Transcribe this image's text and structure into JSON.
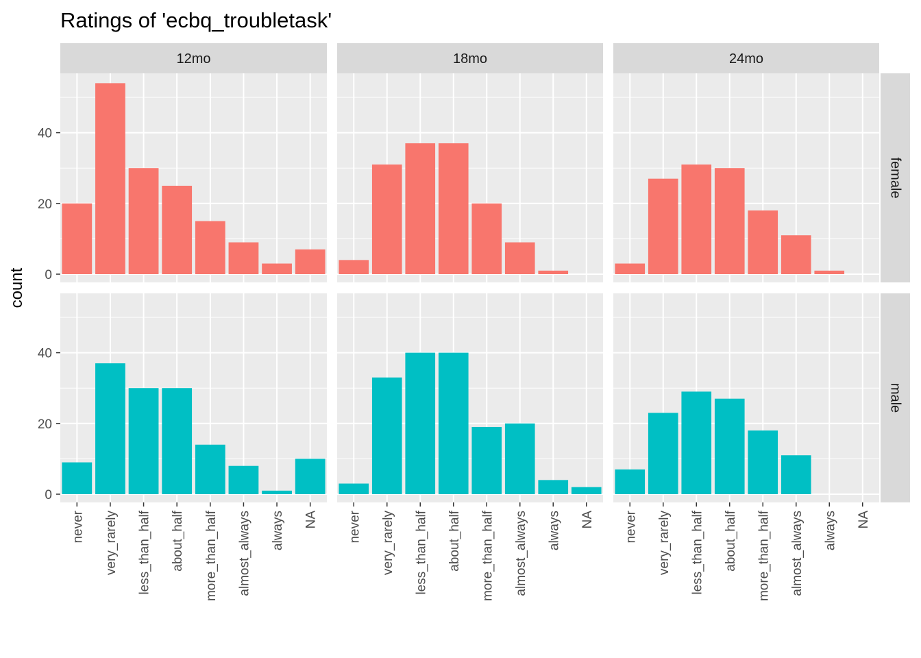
{
  "chart_data": {
    "type": "bar",
    "title": "Ratings of 'ecbq_troubletask'",
    "xlabel": "",
    "ylabel": "count",
    "categories": [
      "never",
      "very_rarely",
      "less_than_half",
      "about_half",
      "more_than_half",
      "almost_always",
      "always",
      "NA"
    ],
    "ylim": [
      0,
      54
    ],
    "yticks": [
      0,
      20,
      40
    ],
    "grid": true,
    "columns": [
      "12mo",
      "18mo",
      "24mo"
    ],
    "rows": [
      "female",
      "male"
    ],
    "colors": {
      "female": "#F8766D",
      "male": "#00BFC4",
      "panel_bg": "#EBEBEB",
      "strip_bg": "#D9D9D9"
    },
    "panels": [
      {
        "row": "female",
        "column": "12mo",
        "values": [
          20,
          54,
          30,
          25,
          15,
          9,
          3,
          7
        ]
      },
      {
        "row": "female",
        "column": "18mo",
        "values": [
          4,
          31,
          37,
          37,
          20,
          9,
          1,
          0
        ]
      },
      {
        "row": "female",
        "column": "24mo",
        "values": [
          3,
          27,
          31,
          30,
          18,
          11,
          1,
          0
        ]
      },
      {
        "row": "male",
        "column": "12mo",
        "values": [
          9,
          37,
          30,
          30,
          14,
          8,
          1,
          10
        ]
      },
      {
        "row": "male",
        "column": "18mo",
        "values": [
          3,
          33,
          40,
          40,
          19,
          20,
          4,
          2
        ]
      },
      {
        "row": "male",
        "column": "24mo",
        "values": [
          7,
          23,
          29,
          27,
          18,
          11,
          0,
          0
        ]
      }
    ]
  }
}
